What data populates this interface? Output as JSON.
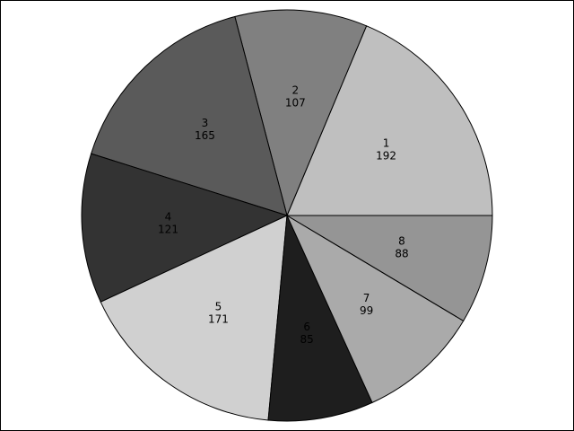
{
  "chart_data": {
    "type": "pie",
    "start_angle_deg": 0,
    "direction": "counterclockwise",
    "legend": "none",
    "slices": [
      {
        "label": "1",
        "value_label": "192",
        "value": 192,
        "color": "#bfbfbf"
      },
      {
        "label": "2",
        "value_label": "107",
        "value": 107,
        "color": "#808080"
      },
      {
        "label": "3",
        "value_label": "165",
        "value": 165,
        "color": "#5a5a5a"
      },
      {
        "label": "4",
        "value_label": "121",
        "value": 121,
        "color": "#333333"
      },
      {
        "label": "5",
        "value_label": "171",
        "value": 171,
        "color": "#d0d0d0"
      },
      {
        "label": "6",
        "value_label": "85",
        "value": 85,
        "color": "#1e1e1e"
      },
      {
        "label": "7",
        "value_label": "99",
        "value": 99,
        "color": "#aaaaaa"
      },
      {
        "label": "8",
        "value_label": "88",
        "value": 88,
        "color": "#959595"
      }
    ]
  }
}
